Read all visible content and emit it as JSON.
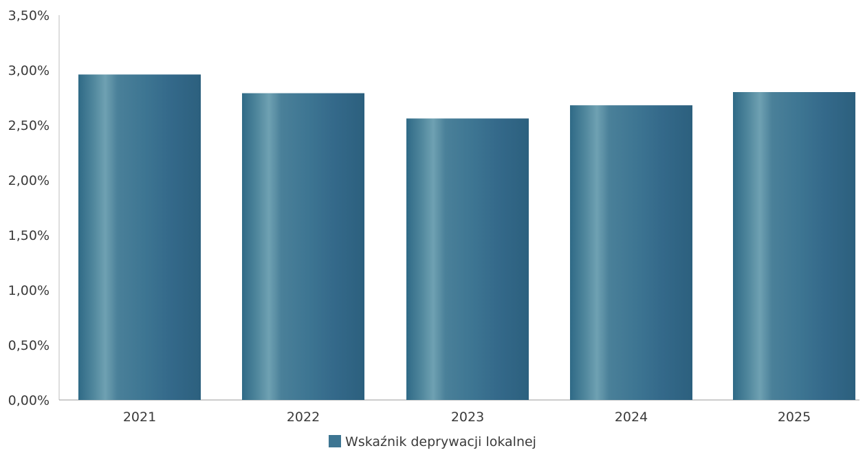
{
  "chart_data": {
    "type": "bar",
    "categories": [
      "2021",
      "2022",
      "2023",
      "2024",
      "2025"
    ],
    "series": [
      {
        "name": "Wskaźnik deprywacji lokalnej",
        "values": [
          2.96,
          2.79,
          2.56,
          2.68,
          2.8
        ]
      }
    ],
    "ylim": [
      0,
      3.5
    ],
    "yticks": [
      "0,00%",
      "0,50%",
      "1,00%",
      "1,50%",
      "2,00%",
      "2,50%",
      "3,00%",
      "3,50%"
    ],
    "ytick_values": [
      0,
      0.5,
      1.0,
      1.5,
      2.0,
      2.5,
      3.0,
      3.5
    ],
    "grid": false,
    "legend_position": "bottom-center",
    "colors": {
      "bar_edge": "#2f6a86",
      "bar_highlight": "#6fa1b2",
      "bar_main": "#3d7592"
    }
  }
}
